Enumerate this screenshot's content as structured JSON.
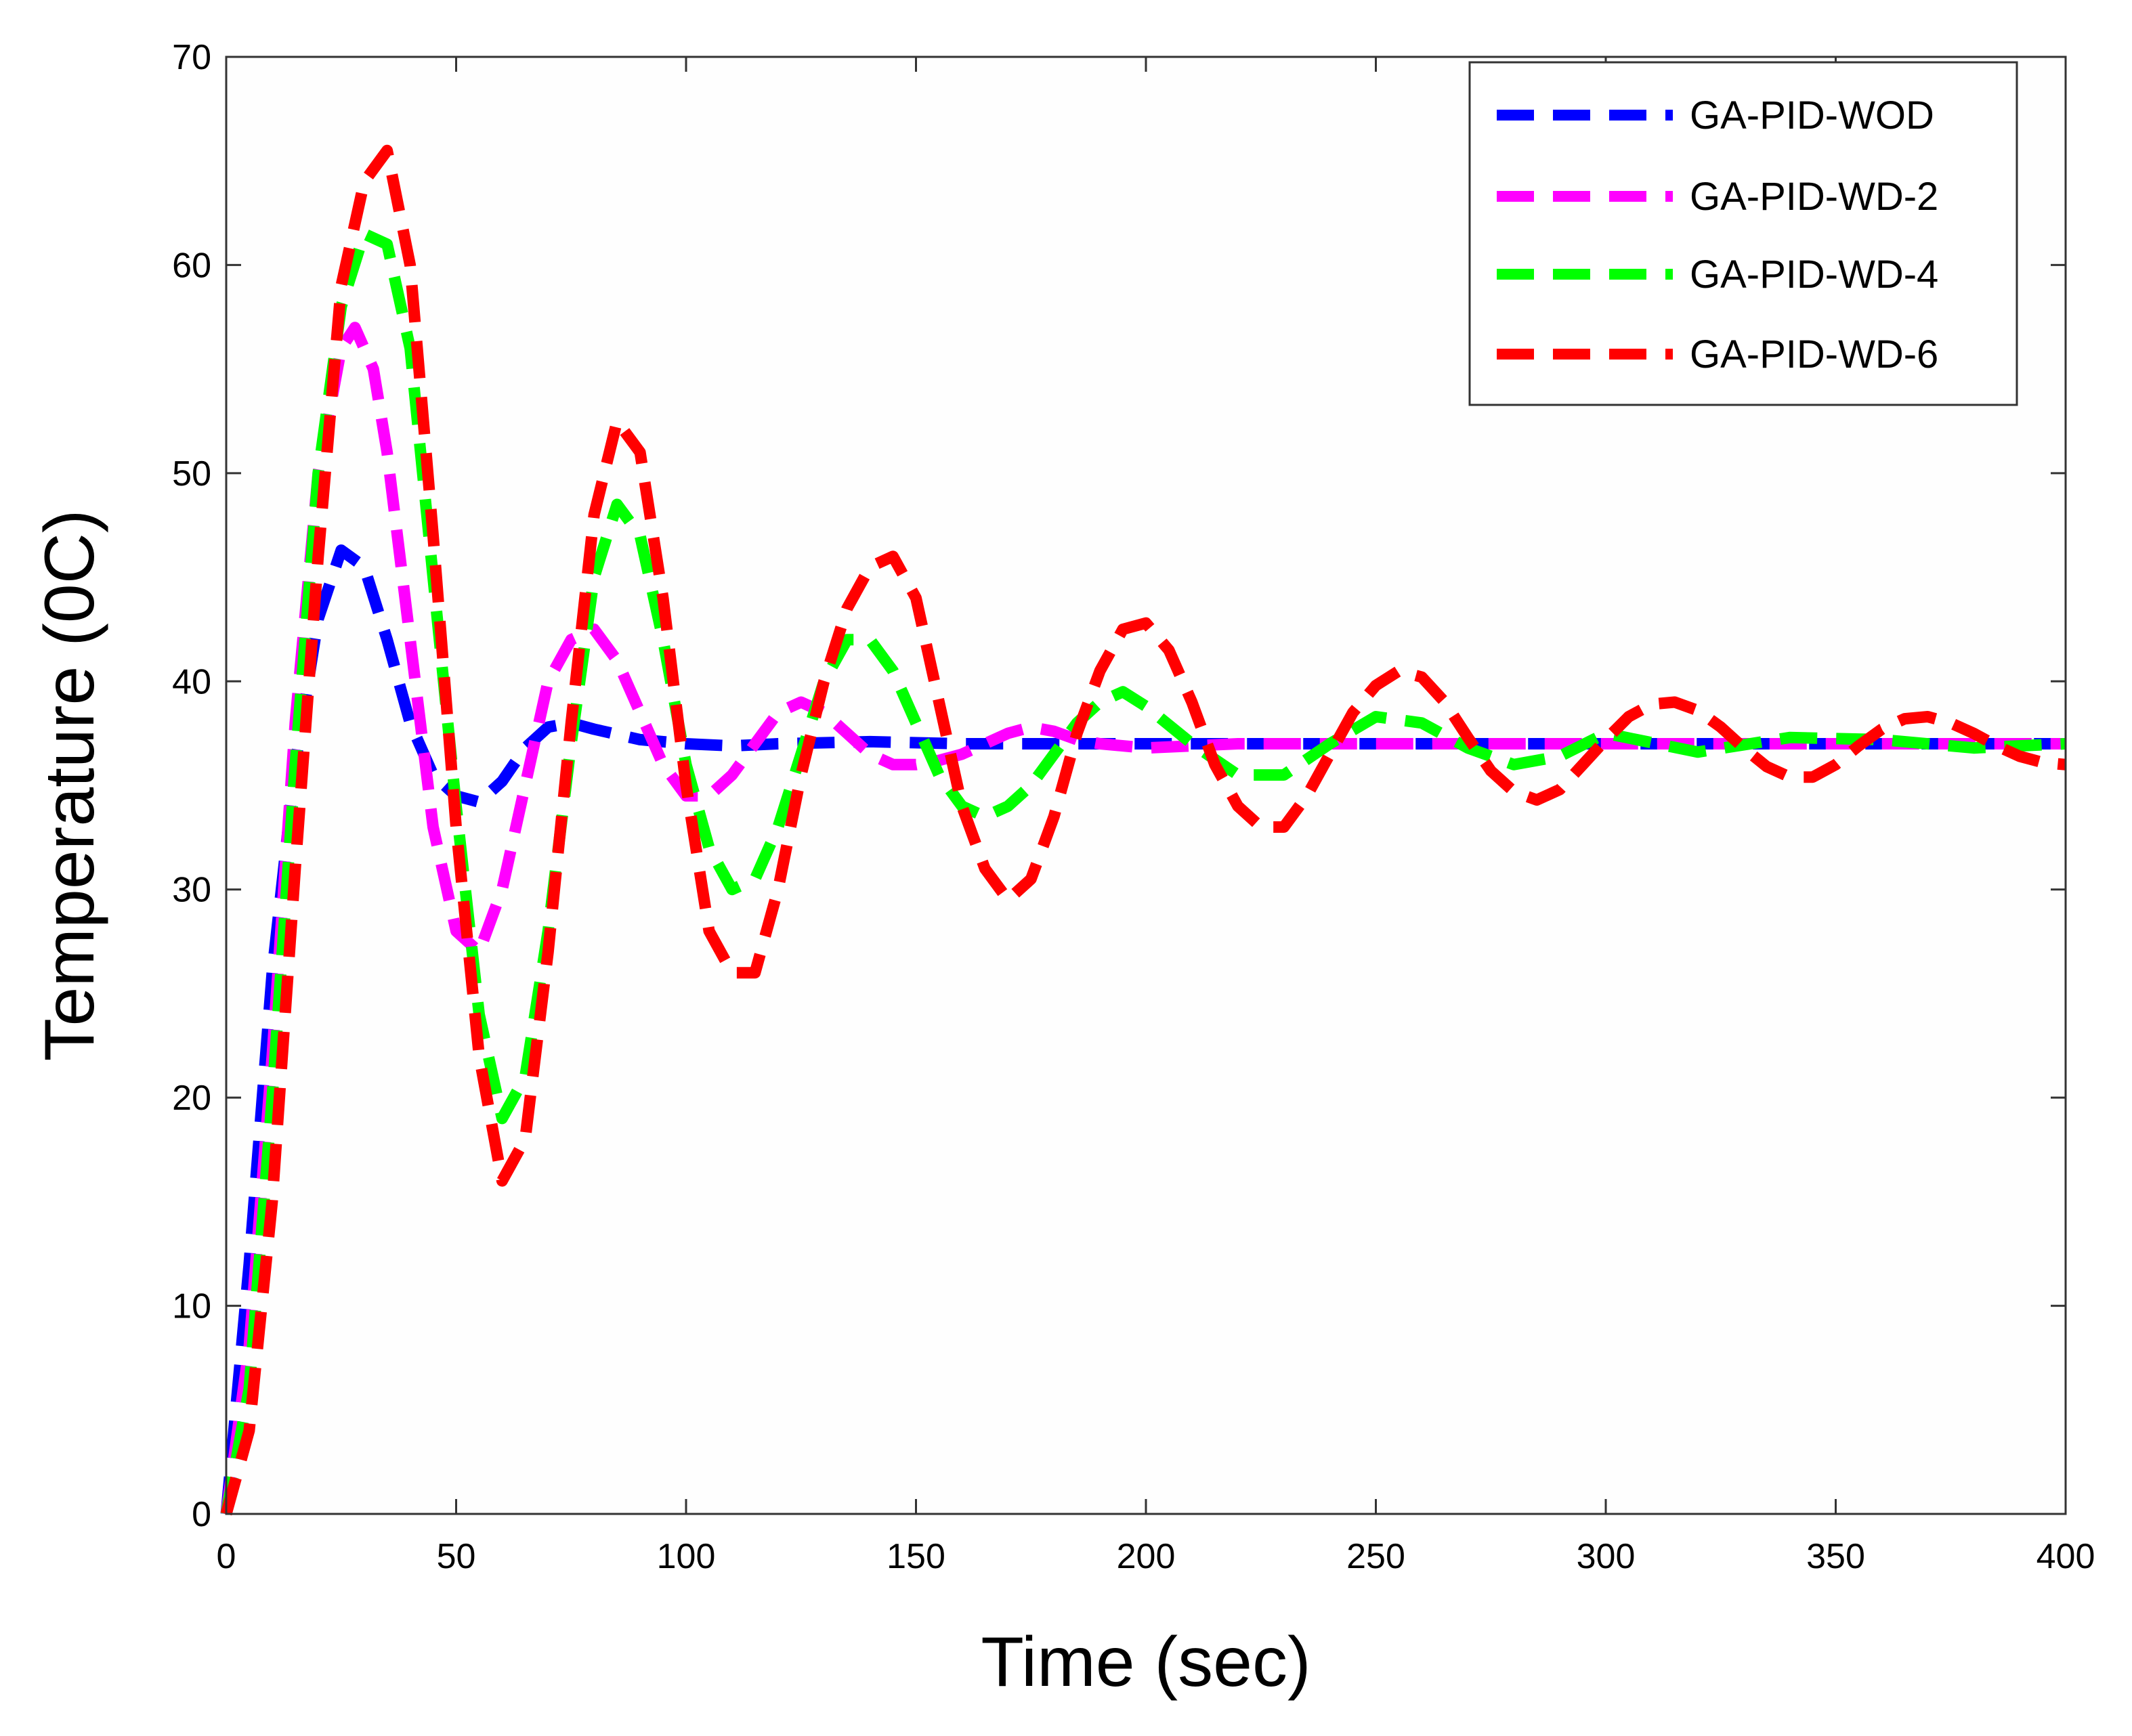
{
  "chart_data": {
    "type": "line",
    "title": "",
    "xlabel": "Time (sec)",
    "ylabel": "Temperature (0C)",
    "xlim": [
      0,
      400
    ],
    "ylim": [
      0,
      70
    ],
    "xticks": [
      0,
      50,
      100,
      150,
      200,
      250,
      300,
      350,
      400
    ],
    "yticks": [
      0,
      10,
      20,
      30,
      40,
      50,
      60,
      70
    ],
    "grid": false,
    "legend_position": "top-right",
    "series": [
      {
        "name": "GA-PID-WOD",
        "color": "#0000ff",
        "x": [
          0,
          5,
          10,
          15,
          20,
          25,
          30,
          35,
          40,
          45,
          50,
          55,
          60,
          65,
          70,
          75,
          80,
          90,
          100,
          110,
          120,
          140,
          160,
          180,
          200,
          250,
          300,
          350,
          400
        ],
        "y": [
          0,
          12,
          26,
          36,
          43,
          46.3,
          45.5,
          42,
          38,
          35.5,
          34.5,
          34.2,
          35.2,
          36.8,
          37.8,
          38,
          37.7,
          37.2,
          37,
          36.9,
          37,
          37.1,
          37,
          37,
          37,
          37,
          37,
          37,
          37
        ]
      },
      {
        "name": "GA-PID-WD-2",
        "color": "#ff00ff",
        "x": [
          0,
          5,
          10,
          15,
          20,
          25,
          28,
          32,
          35,
          40,
          45,
          50,
          55,
          60,
          65,
          70,
          75,
          80,
          85,
          90,
          95,
          100,
          105,
          110,
          115,
          120,
          125,
          130,
          135,
          140,
          145,
          150,
          155,
          160,
          165,
          170,
          175,
          180,
          185,
          190,
          200,
          220,
          250,
          300,
          350,
          400
        ],
        "y": [
          0,
          8,
          22,
          38,
          50,
          56,
          57,
          55,
          51,
          42,
          33,
          28,
          27,
          30,
          35,
          40,
          42,
          42.5,
          41,
          38.5,
          36,
          34.5,
          34.5,
          35.5,
          37,
          38.5,
          39,
          38.5,
          37.5,
          36.5,
          36,
          36,
          36.2,
          36.5,
          37,
          37.5,
          37.8,
          37.6,
          37.2,
          37,
          36.8,
          37,
          37,
          37,
          37,
          37
        ]
      },
      {
        "name": "GA-PID-WD-4",
        "color": "#00ff00",
        "x": [
          0,
          5,
          10,
          15,
          20,
          25,
          30,
          35,
          40,
          45,
          50,
          55,
          60,
          65,
          70,
          75,
          80,
          85,
          90,
          95,
          100,
          105,
          110,
          115,
          120,
          125,
          130,
          135,
          140,
          145,
          150,
          155,
          160,
          165,
          170,
          175,
          180,
          185,
          190,
          195,
          200,
          210,
          220,
          230,
          240,
          250,
          260,
          270,
          280,
          290,
          300,
          320,
          340,
          360,
          380,
          400
        ],
        "y": [
          0,
          6,
          20,
          36,
          50,
          58,
          61.5,
          61,
          56,
          45,
          34,
          24,
          19,
          21,
          28,
          37,
          45,
          48.5,
          47,
          42,
          36,
          32,
          30,
          30.5,
          33,
          36.5,
          40,
          42,
          42,
          40.5,
          38,
          35.5,
          34,
          33.5,
          34,
          35,
          36.5,
          38,
          39,
          39.5,
          38.8,
          37,
          35.5,
          35.5,
          37,
          38.3,
          38,
          36.8,
          36,
          36.4,
          37.5,
          36.6,
          37.3,
          37.2,
          36.8,
          37
        ]
      },
      {
        "name": "GA-PID-WD-6",
        "color": "#ff0000",
        "x": [
          0,
          5,
          10,
          15,
          20,
          25,
          30,
          35,
          40,
          45,
          50,
          55,
          60,
          65,
          70,
          75,
          80,
          85,
          90,
          95,
          100,
          105,
          110,
          115,
          120,
          125,
          130,
          135,
          140,
          145,
          150,
          155,
          160,
          165,
          170,
          175,
          180,
          185,
          190,
          195,
          200,
          205,
          210,
          215,
          220,
          225,
          230,
          235,
          240,
          245,
          250,
          255,
          260,
          265,
          270,
          275,
          280,
          285,
          290,
          295,
          300,
          305,
          310,
          315,
          320,
          325,
          330,
          335,
          340,
          345,
          350,
          355,
          360,
          365,
          370,
          375,
          380,
          385,
          390,
          395,
          400
        ],
        "y": [
          0,
          4,
          15,
          31,
          46,
          59,
          64,
          65.5,
          60,
          47,
          33,
          22,
          16,
          18,
          27,
          38,
          48,
          52.5,
          51,
          44,
          35,
          28,
          26,
          26,
          30,
          35.5,
          40,
          43.5,
          45.5,
          46,
          44,
          39,
          34,
          31,
          29.5,
          30.5,
          33.5,
          37.5,
          40.5,
          42.5,
          42.8,
          41.5,
          39,
          36,
          34,
          33,
          33,
          34.5,
          36.5,
          38.5,
          39.8,
          40.5,
          40.2,
          39,
          37.3,
          35.7,
          34.7,
          34.3,
          34.8,
          36,
          37.2,
          38.3,
          38.9,
          39,
          38.6,
          37.8,
          36.8,
          35.9,
          35.4,
          35.4,
          36,
          36.9,
          37.7,
          38.2,
          38.3,
          38,
          37.5,
          36.9,
          36.4,
          36.1,
          36
        ]
      }
    ]
  }
}
